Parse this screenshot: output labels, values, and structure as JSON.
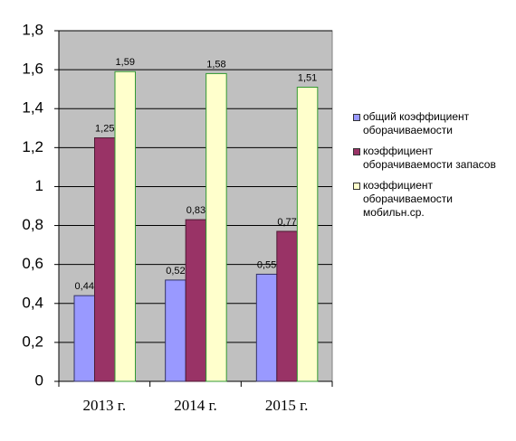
{
  "chart_data": {
    "type": "bar",
    "categories": [
      "2013 г.",
      "2014 г.",
      "2015 г."
    ],
    "series": [
      {
        "name": "общий коэффициент оборачиваемости",
        "color": "#9999ff",
        "edgecolor": "#333366",
        "values": [
          0.44,
          0.52,
          0.55
        ],
        "value_labels": [
          "0,44",
          "0,52",
          "0,55"
        ]
      },
      {
        "name": "коэффициент оборачиваемости запасов",
        "color": "#993366",
        "edgecolor": "#4d1a33",
        "values": [
          1.25,
          0.83,
          0.77
        ],
        "value_labels": [
          "1,25",
          "0,83",
          "0,77"
        ]
      },
      {
        "name": "коэффициент оборачиваемости мобильн.ср.",
        "color": "#ffffcc",
        "edgecolor": "#339933",
        "values": [
          1.59,
          1.58,
          1.51
        ],
        "value_labels": [
          "1,59",
          "1,58",
          "1,51"
        ]
      }
    ],
    "ylim": [
      0,
      1.8
    ],
    "yticks": [
      0,
      {
        "value": 0.2,
        "label": "0,2"
      },
      {
        "value": 0.4,
        "label": "0,4"
      },
      {
        "value": 0.6,
        "label": "0,6"
      },
      {
        "value": 0.8,
        "label": "0,8"
      },
      1,
      {
        "value": 1.2,
        "label": "1,2"
      },
      {
        "value": 1.4,
        "label": "1,4"
      },
      {
        "value": 1.6,
        "label": "1,6"
      },
      {
        "value": 1.8,
        "label": "1,8"
      }
    ],
    "grid": true,
    "legend": "right"
  }
}
